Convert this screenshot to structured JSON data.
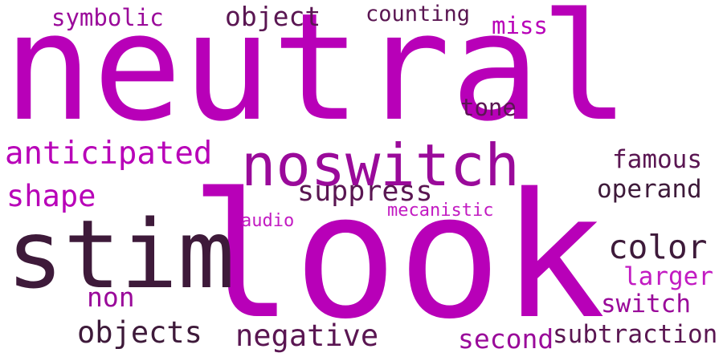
{
  "words": {
    "neutral": "neutral",
    "look": "look",
    "stim": "stim",
    "noswitch": "noswitch",
    "anticipated": "anticipated",
    "symbolic": "symbolic",
    "object": "object",
    "counting": "counting",
    "miss": "miss",
    "tone": "tone",
    "famous": "famous",
    "operand": "operand",
    "shape": "shape",
    "suppress": "suppress",
    "audio": "audio",
    "mecanistic": "mecanistic",
    "color": "color",
    "larger": "larger",
    "non": "non",
    "switch": "switch",
    "objects": "objects",
    "negative": "negative",
    "second": "second",
    "subtraction": "subtraction"
  }
}
